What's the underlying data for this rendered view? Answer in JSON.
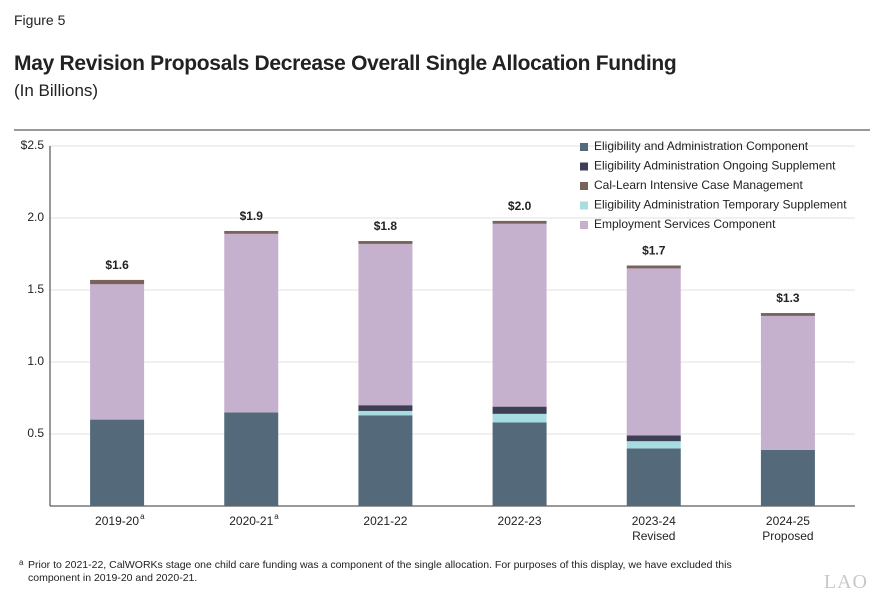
{
  "figure_label": "Figure 5",
  "chart_data": {
    "type": "stacked-bar",
    "title": "May Revision Proposals Decrease Overall Single Allocation Funding",
    "subtitle": "(In Billions)",
    "categories": [
      [
        "2019-20"
      ],
      [
        "2020-21"
      ],
      [
        "2021-22"
      ],
      [
        "2022-23"
      ],
      [
        "2023-24",
        "Revised"
      ],
      [
        "2024-25",
        "Proposed"
      ]
    ],
    "category_notes": [
      "a",
      "a",
      null,
      null,
      null,
      null
    ],
    "series": [
      {
        "name": "Eligibility and Administration Component",
        "color": "#546a7b",
        "values": [
          0.6,
          0.65,
          0.63,
          0.58,
          0.4,
          0.39
        ]
      },
      {
        "name": "Eligibility Administration Ongoing Supplement",
        "color": "#3d3f55",
        "values": [
          0,
          0,
          0.04,
          0.05,
          0.04,
          0
        ]
      },
      {
        "name": "Cal-Learn Intensive Case Management",
        "color": "#7a625c",
        "values": [
          0.03,
          0.02,
          0.02,
          0.02,
          0.02,
          0.02
        ]
      },
      {
        "name": "Eligibility Administration Temporary Supplement",
        "color": "#a7dde0",
        "values": [
          0,
          0,
          0.03,
          0.06,
          0.05,
          0
        ]
      },
      {
        "name": "Employment Services Component",
        "color": "#c5b0cd",
        "values": [
          0.94,
          1.24,
          1.12,
          1.27,
          1.16,
          0.93
        ]
      }
    ],
    "total_labels": [
      "$1.6",
      "$1.9",
      "$1.8",
      "$2.0",
      "$1.7",
      "$1.3"
    ],
    "ylim": [
      0,
      2.5
    ],
    "yticks": [
      {
        "value": 0.5,
        "label": "0.5"
      },
      {
        "value": 1,
        "label": "1.0"
      },
      {
        "value": 1.5,
        "label": "1.5"
      },
      {
        "value": 2,
        "label": "2.0"
      },
      {
        "value": 2.5,
        "label": "$2.5"
      }
    ],
    "grid": true
  },
  "footnote": {
    "marker": "a",
    "text": "Prior to 2021-22, CalWORKs stage one child care funding was a component of the single allocation. For purposes of this display, we have excluded this component in 2019-20 and 2020-21."
  },
  "logo": "LAO"
}
